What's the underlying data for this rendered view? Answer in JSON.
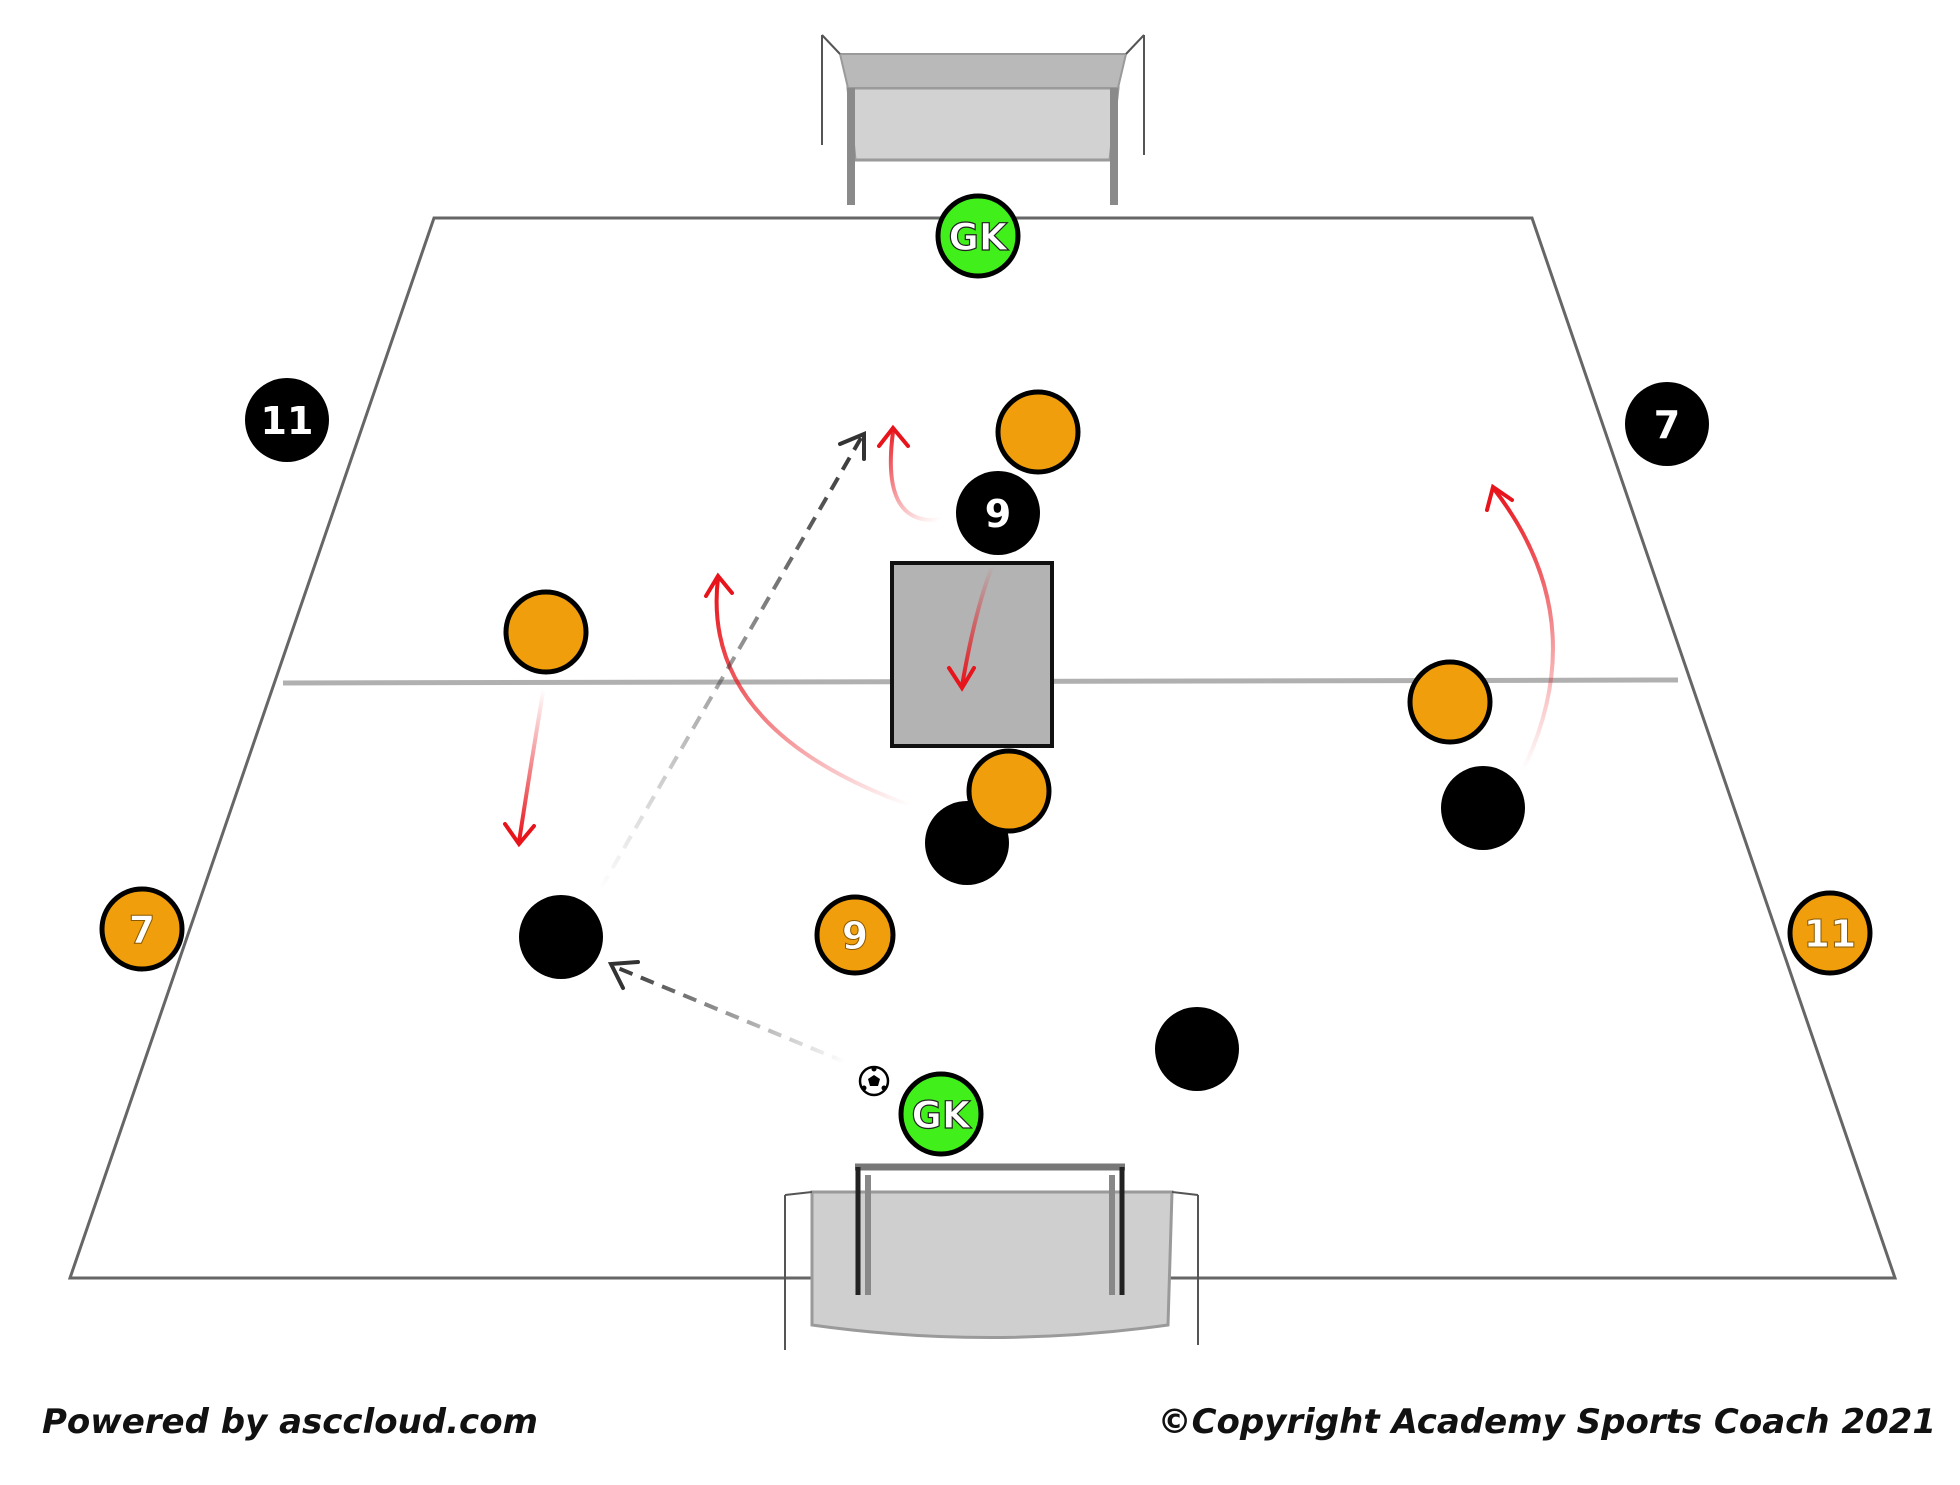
{
  "colors": {
    "orange": "#F09E0B",
    "black": "#000000",
    "gk_green": "#41F01B",
    "red_arrow": "#E8141B",
    "dark_arrow": "#333333",
    "pitch_line": "#666666",
    "box_fill": "#B3B3B3"
  },
  "players": {
    "gk_top": "GK",
    "gk_bottom": "GK",
    "black_11": "11",
    "black_7": "7",
    "black_9": "9",
    "orange_7": "7",
    "orange_9": "9",
    "orange_11": "11"
  },
  "ball_icon": "soccer-ball-icon",
  "footer": {
    "left": "Powered by asccloud.com",
    "right": "©Copyright Academy Sports Coach 2021"
  }
}
